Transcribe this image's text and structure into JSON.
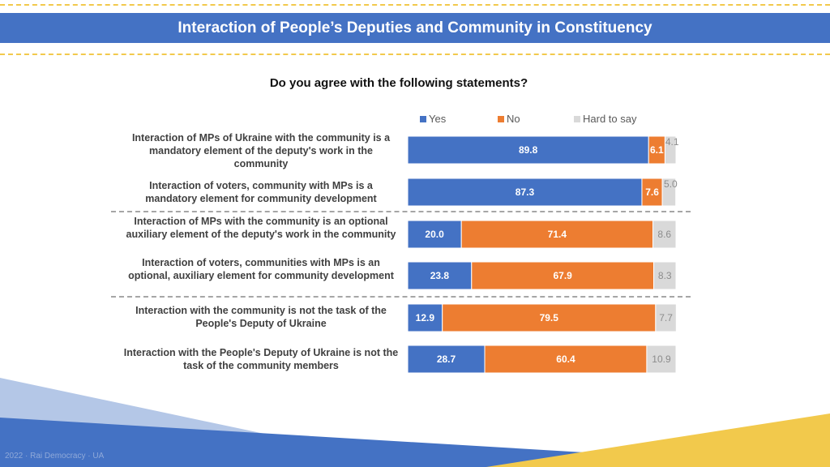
{
  "header": {
    "title": "Interaction of People’s Deputies and Community in Constituency"
  },
  "question": "Do you agree with the following statements?",
  "footer": {
    "text": "2022 · Rai Democracy · UA"
  },
  "colors": {
    "yes": "#4472c4",
    "no": "#ed7d31",
    "hard": "#d9d9d9",
    "banner": "#4472c4",
    "accent": "#f2c94c"
  },
  "chart_data": {
    "type": "bar",
    "orientation": "horizontal",
    "stacked": true,
    "title": "Do you agree with the following statements?",
    "legend_position": "top",
    "categories": [
      "Interaction of MPs of Ukraine with the community is a mandatory element of the deputy's work in the community",
      "Interaction of voters, community with MPs is a mandatory element for community development",
      "Interaction of MPs with the community is an optional auxiliary element of the deputy's work in the community",
      "Interaction of voters, communities with MPs is an optional, auxiliary element for community development",
      "Interaction with the community is not the task of the People's Deputy of Ukraine",
      "Interaction with the People's Deputy of Ukraine is not the task of the community members"
    ],
    "series": [
      {
        "name": "Yes",
        "values": [
          "89.8",
          "87.3",
          "20.0",
          "23.8",
          "12.9",
          "28.7"
        ]
      },
      {
        "name": "No",
        "values": [
          "6.1",
          "7.6",
          "71.4",
          "67.9",
          "79.5",
          "60.4"
        ]
      },
      {
        "name": "Hard to say",
        "values": [
          "4.1",
          "5.0",
          "8.6",
          "8.3",
          "7.7",
          "10.9"
        ]
      }
    ],
    "xlim": [
      0,
      100
    ]
  }
}
